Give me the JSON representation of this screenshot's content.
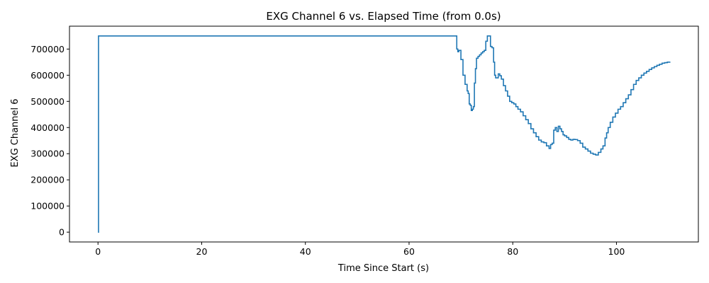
{
  "chart_data": {
    "type": "line",
    "title": "EXG Channel 6 vs. Elapsed Time (from 0.0s)",
    "xlabel": "Time Since Start (s)",
    "ylabel": "EXG Channel 6",
    "xlim": [
      -5.5,
      115.8
    ],
    "ylim": [
      -37500,
      787500
    ],
    "xticks": [
      0,
      20,
      40,
      60,
      80,
      100
    ],
    "yticks": [
      0,
      100000,
      200000,
      300000,
      400000,
      500000,
      600000,
      700000
    ],
    "xtick_labels": [
      "0",
      "20",
      "40",
      "60",
      "80",
      "100"
    ],
    "ytick_labels": [
      "0",
      "100000",
      "200000",
      "300000",
      "400000",
      "500000",
      "600000",
      "700000"
    ],
    "grid": false,
    "line_color": "#1f77b4",
    "step": true,
    "series": [
      {
        "x": [
          0,
          0.1,
          69.2,
          69.4,
          69.6,
          70,
          70.4,
          70.8,
          71.2,
          71.4,
          71.6,
          71.8,
          72,
          72.2,
          72.4,
          72.6,
          72.8,
          73,
          73.3,
          73.6,
          73.9,
          74.2,
          74.5,
          74.8,
          75.1,
          75.4,
          75.7,
          76,
          76.3,
          76.5,
          76.7,
          76.9,
          77.2,
          77.5,
          77.8,
          78.2,
          78.6,
          79,
          79.4,
          79.8,
          80.2,
          80.6,
          81,
          81.5,
          82,
          82.5,
          83,
          83.5,
          84,
          84.5,
          85,
          85.5,
          86,
          86.5,
          87,
          87.3,
          87.6,
          87.9,
          88.2,
          88.5,
          88.8,
          89.1,
          89.4,
          89.7,
          90,
          90.4,
          90.8,
          91.2,
          91.6,
          92,
          92.5,
          93,
          93.5,
          94,
          94.5,
          95,
          95.5,
          96,
          96.5,
          97,
          97.4,
          97.8,
          98.1,
          98.4,
          98.8,
          99.3,
          99.8,
          100.3,
          100.8,
          101.3,
          101.8,
          102.3,
          102.8,
          103.3,
          103.8,
          104.3,
          104.8,
          105.3,
          105.8,
          106.3,
          106.8,
          107.3,
          107.8,
          108.3,
          108.8,
          109.3,
          109.8,
          110.3
        ],
        "y": [
          0,
          750000,
          700000,
          690000,
          695000,
          660000,
          600000,
          565000,
          540000,
          530000,
          490000,
          485000,
          465000,
          470000,
          480000,
          570000,
          625000,
          665000,
          672000,
          678000,
          685000,
          690000,
          695000,
          730000,
          750000,
          750000,
          710000,
          705000,
          650000,
          600000,
          590000,
          590000,
          605000,
          598000,
          585000,
          560000,
          540000,
          520000,
          500000,
          495000,
          490000,
          480000,
          470000,
          460000,
          445000,
          430000,
          415000,
          395000,
          380000,
          365000,
          352000,
          345000,
          342000,
          330000,
          320000,
          335000,
          340000,
          390000,
          400000,
          385000,
          405000,
          395000,
          385000,
          372000,
          368000,
          362000,
          355000,
          352000,
          355000,
          354000,
          350000,
          340000,
          325000,
          318000,
          310000,
          302000,
          298000,
          295000,
          305000,
          318000,
          330000,
          360000,
          380000,
          400000,
          420000,
          440000,
          455000,
          470000,
          480000,
          495000,
          510000,
          525000,
          545000,
          565000,
          580000,
          590000,
          600000,
          608000,
          615000,
          622000,
          628000,
          633000,
          638000,
          642000,
          646000,
          648000,
          650000,
          652000
        ]
      }
    ]
  }
}
